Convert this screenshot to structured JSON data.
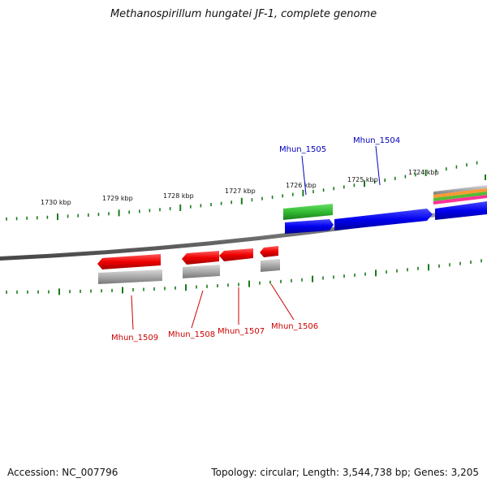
{
  "title": "Methanospirillum hungatei JF-1, complete genome",
  "footer": {
    "accession": "Accession: NC_007796",
    "summary": "Topology: circular; Length: 3,544,738 bp; Genes: 3,205"
  },
  "scale_labels": [
    "1730 kbp",
    "1729 kbp",
    "1728 kbp",
    "1727 kbp",
    "1726 kbp",
    "1725 kbp",
    "1724 kbp"
  ],
  "gene_labels": {
    "forward": [
      "Mhun_1505",
      "Mhun_1504"
    ],
    "reverse": [
      "Mhun_1509",
      "Mhun_1508",
      "Mhun_1507",
      "Mhun_1506"
    ]
  },
  "colors": {
    "forward_label": "#0000bb",
    "reverse_label": "#cc0000",
    "forward_gene": "#0000ee",
    "reverse_gene": "#ee0000",
    "feature_green": "#33bb33",
    "feature_grey": "#aaaaaa",
    "backbone": "#888888",
    "tick": "#1a7a1a"
  }
}
